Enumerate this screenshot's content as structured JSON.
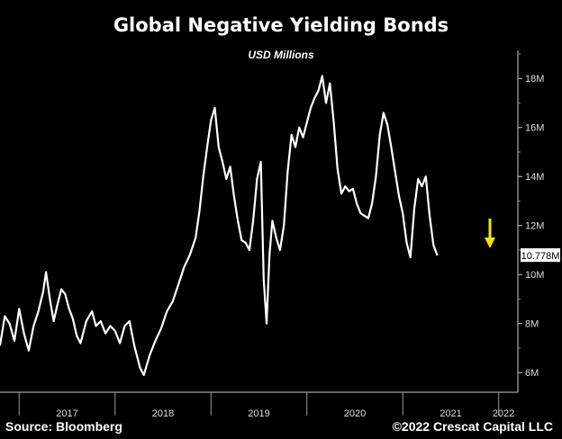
{
  "header": {
    "title": "Global Negative Yielding Bonds",
    "subtitle": "USD Millions"
  },
  "footer": {
    "source": "Source: Bloomberg",
    "copyright": "©2022 Crescat Capital LLC"
  },
  "colors": {
    "background": "#000000",
    "line": "#ffffff",
    "arrow": "#f5e600",
    "last_value_box": "#ffffff"
  },
  "icons": {
    "arrow": "down-arrow-icon"
  },
  "chart_data": {
    "type": "line",
    "title": "Global Negative Yielding Bonds",
    "subtitle": "USD Millions",
    "x_labels": [
      "2017",
      "2018",
      "2019",
      "2020",
      "2021",
      "2022"
    ],
    "y_ticks": [
      "6M",
      "8M",
      "10M",
      "12M",
      "14M",
      "16M",
      "18M"
    ],
    "y_tick_values": [
      6,
      8,
      10,
      12,
      14,
      16,
      18
    ],
    "ylim": [
      5.2,
      19.0
    ],
    "xlim": [
      2016.8,
      2022.2
    ],
    "last_value_label": "10.778M",
    "last_value": 10.778,
    "grid": false,
    "axis_side": "right",
    "series": [
      {
        "values": [
          [
            2016.8,
            7.1
          ],
          [
            2016.85,
            8.3
          ],
          [
            2016.9,
            8.0
          ],
          [
            2016.95,
            7.3
          ],
          [
            2017.0,
            8.6
          ],
          [
            2017.05,
            7.6
          ],
          [
            2017.1,
            6.9
          ],
          [
            2017.15,
            7.9
          ],
          [
            2017.2,
            8.5
          ],
          [
            2017.25,
            9.3
          ],
          [
            2017.28,
            10.1
          ],
          [
            2017.32,
            9.0
          ],
          [
            2017.36,
            8.1
          ],
          [
            2017.4,
            8.8
          ],
          [
            2017.44,
            9.4
          ],
          [
            2017.48,
            9.2
          ],
          [
            2017.52,
            8.6
          ],
          [
            2017.56,
            8.2
          ],
          [
            2017.6,
            7.5
          ],
          [
            2017.64,
            7.2
          ],
          [
            2017.7,
            8.1
          ],
          [
            2017.76,
            8.5
          ],
          [
            2017.8,
            7.9
          ],
          [
            2017.85,
            8.1
          ],
          [
            2017.9,
            7.6
          ],
          [
            2017.95,
            7.9
          ],
          [
            2018.0,
            7.7
          ],
          [
            2018.05,
            7.2
          ],
          [
            2018.1,
            7.9
          ],
          [
            2018.15,
            8.1
          ],
          [
            2018.2,
            7.1
          ],
          [
            2018.26,
            6.2
          ],
          [
            2018.3,
            5.9
          ],
          [
            2018.36,
            6.7
          ],
          [
            2018.42,
            7.3
          ],
          [
            2018.48,
            7.8
          ],
          [
            2018.54,
            8.5
          ],
          [
            2018.6,
            8.9
          ],
          [
            2018.66,
            9.6
          ],
          [
            2018.72,
            10.3
          ],
          [
            2018.78,
            10.8
          ],
          [
            2018.84,
            11.5
          ],
          [
            2018.88,
            12.6
          ],
          [
            2018.92,
            14.0
          ],
          [
            2018.96,
            15.2
          ],
          [
            2019.0,
            16.3
          ],
          [
            2019.04,
            16.8
          ],
          [
            2019.08,
            15.2
          ],
          [
            2019.12,
            14.6
          ],
          [
            2019.16,
            13.9
          ],
          [
            2019.2,
            14.4
          ],
          [
            2019.24,
            13.2
          ],
          [
            2019.28,
            12.2
          ],
          [
            2019.32,
            11.4
          ],
          [
            2019.36,
            11.3
          ],
          [
            2019.4,
            11.0
          ],
          [
            2019.44,
            12.2
          ],
          [
            2019.48,
            13.9
          ],
          [
            2019.52,
            14.6
          ],
          [
            2019.55,
            9.8
          ],
          [
            2019.58,
            8.0
          ],
          [
            2019.61,
            10.8
          ],
          [
            2019.64,
            12.2
          ],
          [
            2019.68,
            11.5
          ],
          [
            2019.72,
            11.0
          ],
          [
            2019.76,
            12.0
          ],
          [
            2019.8,
            14.2
          ],
          [
            2019.84,
            15.7
          ],
          [
            2019.88,
            15.2
          ],
          [
            2019.92,
            16.0
          ],
          [
            2019.96,
            15.6
          ],
          [
            2020.0,
            16.2
          ],
          [
            2020.04,
            16.8
          ],
          [
            2020.08,
            17.2
          ],
          [
            2020.12,
            17.5
          ],
          [
            2020.16,
            18.1
          ],
          [
            2020.2,
            17.0
          ],
          [
            2020.24,
            17.8
          ],
          [
            2020.28,
            16.2
          ],
          [
            2020.32,
            14.3
          ],
          [
            2020.36,
            13.3
          ],
          [
            2020.4,
            13.6
          ],
          [
            2020.44,
            13.4
          ],
          [
            2020.48,
            13.5
          ],
          [
            2020.52,
            12.9
          ],
          [
            2020.56,
            12.5
          ],
          [
            2020.6,
            12.4
          ],
          [
            2020.64,
            12.3
          ],
          [
            2020.68,
            12.9
          ],
          [
            2020.72,
            14.0
          ],
          [
            2020.76,
            15.7
          ],
          [
            2020.8,
            16.6
          ],
          [
            2020.84,
            16.1
          ],
          [
            2020.88,
            15.2
          ],
          [
            2020.92,
            14.2
          ],
          [
            2020.96,
            13.2
          ],
          [
            2021.0,
            12.5
          ],
          [
            2021.04,
            11.3
          ],
          [
            2021.08,
            10.7
          ],
          [
            2021.12,
            12.7
          ],
          [
            2021.16,
            13.9
          ],
          [
            2021.2,
            13.6
          ],
          [
            2021.24,
            14.0
          ],
          [
            2021.28,
            12.4
          ],
          [
            2021.32,
            11.2
          ],
          [
            2021.36,
            10.778
          ]
        ]
      }
    ]
  }
}
